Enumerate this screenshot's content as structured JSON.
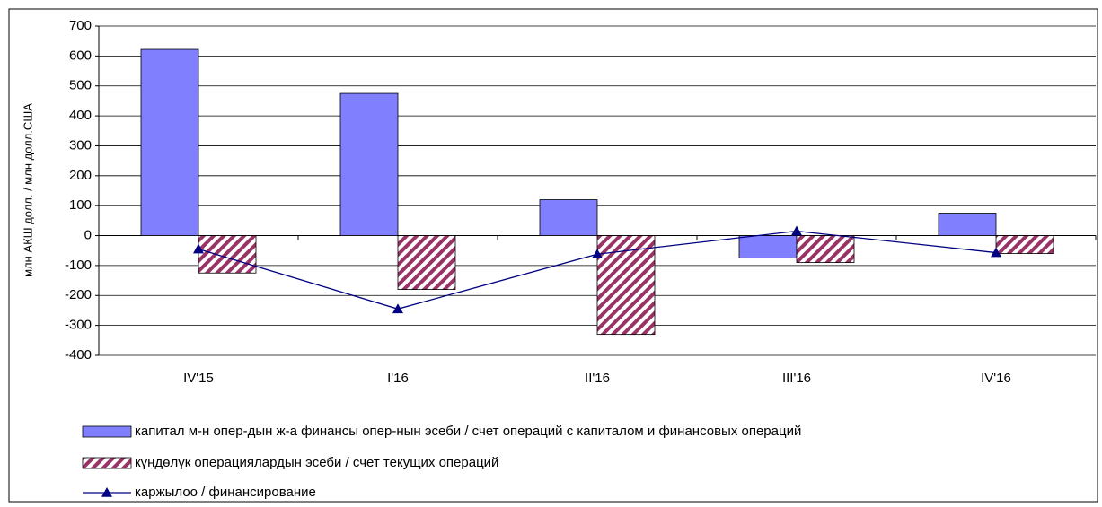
{
  "chart_data": {
    "type": "bar",
    "y_label": "млн АКШ долл. / млн долл.США",
    "categories": [
      "IV'15",
      "I'16",
      "II'16",
      "III'16",
      "IV'16"
    ],
    "series": [
      {
        "name": "капитал м-н опер-дын ж-а финансы опер-нын эсеби / счет операций с капиталом и финансовых операций",
        "type": "bar",
        "color": "#8080ff",
        "values": [
          622,
          475,
          120,
          -75,
          75
        ]
      },
      {
        "name": "күндөлүк операциялардын эсеби /  счет текущих операций",
        "type": "bar",
        "pattern": "hatch",
        "color": "#993366",
        "values": [
          -125,
          -180,
          -330,
          -90,
          -60
        ]
      },
      {
        "name": "каржылоо / финансирование",
        "type": "line",
        "color": "#000080",
        "values": [
          -45,
          -245,
          -62,
          15,
          -57
        ]
      }
    ],
    "ylim": [
      -400,
      700
    ],
    "yticks": [
      -400,
      -300,
      -200,
      -100,
      0,
      100,
      200,
      300,
      400,
      500,
      600,
      700
    ],
    "grid": true
  }
}
